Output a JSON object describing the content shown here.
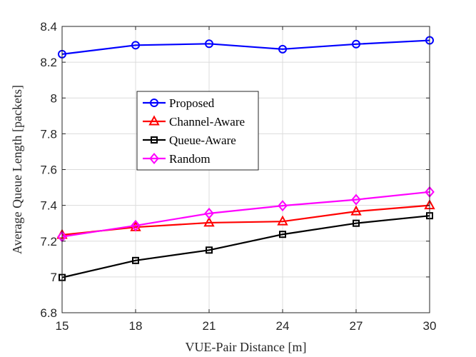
{
  "chart_data": {
    "type": "line",
    "title": "",
    "xlabel": "VUE-Pair Distance [m]",
    "ylabel": "Average Queue Length [packets]",
    "x": [
      15,
      18,
      21,
      24,
      27,
      30
    ],
    "xlim": [
      15,
      30
    ],
    "ylim": [
      6.8,
      8.4
    ],
    "xticks": [
      "15",
      "18",
      "21",
      "24",
      "27",
      "30"
    ],
    "yticks": [
      "6.8",
      "7",
      "7.2",
      "7.4",
      "7.6",
      "7.8",
      "8",
      "8.2",
      "8.4"
    ],
    "grid": true,
    "legend_position": "center-left",
    "series": [
      {
        "name": "Proposed",
        "values": [
          8.245,
          8.295,
          8.303,
          8.273,
          8.301,
          8.322
        ],
        "color": "#0000FF",
        "marker": "circle"
      },
      {
        "name": "Channel-Aware",
        "values": [
          7.235,
          7.278,
          7.303,
          7.31,
          7.366,
          7.4
        ],
        "color": "#FF0000",
        "marker": "triangle"
      },
      {
        "name": "Queue-Aware",
        "values": [
          6.997,
          7.092,
          7.15,
          7.238,
          7.3,
          7.342
        ],
        "color": "#000000",
        "marker": "square"
      },
      {
        "name": "Random",
        "values": [
          7.225,
          7.287,
          7.355,
          7.398,
          7.432,
          7.475
        ],
        "color": "#FF00FF",
        "marker": "diamond"
      }
    ]
  }
}
